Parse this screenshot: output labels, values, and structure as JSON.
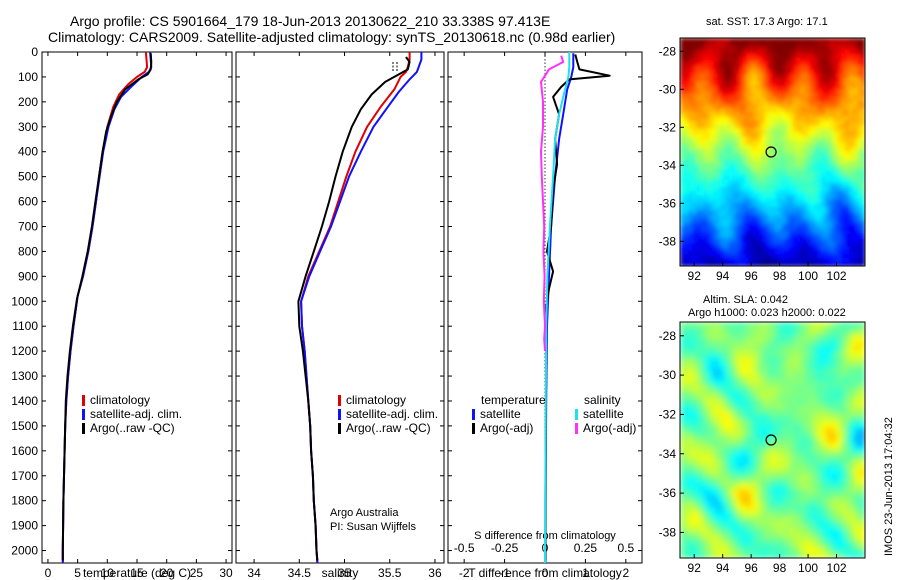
{
  "header": {
    "line1": "Argo profile: CS 5901664_179 18-Jun-2013 20130622_210 33.338S 97.413E",
    "line2": "Climatology: CARS2009. Satellite-adjusted climatology: synTS_20130618.nc (0.98d earlier)"
  },
  "footer": {
    "credit": "IMOS 23-Jun-2013 17:04:32",
    "agency": "Argo Australia",
    "pi": "PI: Susan Wijffels"
  },
  "colors": {
    "climatology": "#e00000",
    "satellite": "#1010ff",
    "argo": "#000000",
    "sal_satellite": "#20e0f0",
    "sal_argo": "#ff30ff"
  },
  "chart_data": [
    {
      "type": "line",
      "name": "temperature-panel",
      "xlabel": "temperature (deg C)",
      "xlim": [
        -1,
        31
      ],
      "ylim": [
        0,
        2050
      ],
      "y_reversed": true,
      "xticks": [
        0,
        5,
        10,
        15,
        20,
        25,
        30
      ],
      "yticks": [
        0,
        100,
        200,
        300,
        400,
        500,
        600,
        700,
        800,
        900,
        1000,
        1100,
        1200,
        1300,
        1400,
        1500,
        1600,
        1700,
        1800,
        1900,
        2000
      ],
      "legend": [
        "climatology",
        "satellite-adj. clim.",
        "Argo(..raw -QC)"
      ],
      "legend_position": "bottom-center",
      "series": [
        {
          "name": "climatology",
          "color": "#e00000",
          "points": [
            [
              16.5,
              0
            ],
            [
              16.6,
              30
            ],
            [
              16.7,
              60
            ],
            [
              16.3,
              80
            ],
            [
              15,
              100
            ],
            [
              13.5,
              130
            ],
            [
              12,
              170
            ],
            [
              11,
              220
            ],
            [
              10,
              300
            ],
            [
              9.2,
              400
            ],
            [
              8.6,
              500
            ],
            [
              8.1,
              600
            ],
            [
              7.5,
              700
            ],
            [
              6.8,
              800
            ],
            [
              5.9,
              900
            ],
            [
              5,
              980
            ],
            [
              4.3,
              1100
            ],
            [
              3.8,
              1200
            ],
            [
              3.4,
              1300
            ],
            [
              3.1,
              1400
            ],
            [
              2.9,
              1500
            ],
            [
              2.8,
              1600
            ],
            [
              2.7,
              1700
            ],
            [
              2.6,
              1800
            ],
            [
              2.55,
              1900
            ],
            [
              2.5,
              2000
            ],
            [
              2.5,
              2050
            ]
          ]
        },
        {
          "name": "satellite-adj. clim.",
          "color": "#1010ff",
          "points": [
            [
              17.2,
              0
            ],
            [
              17.3,
              30
            ],
            [
              17.4,
              60
            ],
            [
              17,
              80
            ],
            [
              15.8,
              100
            ],
            [
              14,
              140
            ],
            [
              12.3,
              180
            ],
            [
              11.2,
              230
            ],
            [
              10.2,
              300
            ],
            [
              9.3,
              400
            ],
            [
              8.7,
              500
            ],
            [
              8.1,
              600
            ],
            [
              7.5,
              700
            ],
            [
              6.8,
              800
            ],
            [
              5.9,
              900
            ],
            [
              5,
              980
            ],
            [
              4.3,
              1100
            ],
            [
              3.8,
              1200
            ],
            [
              3.4,
              1300
            ],
            [
              3.1,
              1400
            ],
            [
              2.9,
              1500
            ],
            [
              2.8,
              1600
            ],
            [
              2.7,
              1700
            ],
            [
              2.6,
              1800
            ],
            [
              2.55,
              1900
            ],
            [
              2.5,
              2000
            ],
            [
              2.5,
              2050
            ]
          ]
        },
        {
          "name": "Argo(..raw -QC)",
          "color": "#000000",
          "points": [
            [
              17.3,
              5
            ],
            [
              17.4,
              40
            ],
            [
              17.3,
              70
            ],
            [
              16.8,
              90
            ],
            [
              15.2,
              110
            ],
            [
              13,
              150
            ],
            [
              11.6,
              200
            ],
            [
              10.6,
              260
            ],
            [
              9.8,
              320
            ],
            [
              9.2,
              400
            ],
            [
              8.6,
              500
            ],
            [
              8,
              600
            ],
            [
              7.4,
              700
            ],
            [
              6.7,
              800
            ],
            [
              5.8,
              900
            ],
            [
              4.9,
              990
            ],
            [
              4.2,
              1100
            ],
            [
              3.7,
              1200
            ],
            [
              3.3,
              1300
            ],
            [
              3.0,
              1400
            ],
            [
              2.9,
              1500
            ],
            [
              2.8,
              1600
            ],
            [
              2.7,
              1700
            ],
            [
              2.6,
              1800
            ],
            [
              2.55,
              1900
            ],
            [
              2.5,
              2000
            ],
            [
              2.5,
              2040
            ]
          ]
        }
      ]
    },
    {
      "type": "line",
      "name": "salinity-panel",
      "xlabel": "salinity",
      "xlim": [
        33.8,
        36.1
      ],
      "ylim": [
        0,
        2050
      ],
      "y_reversed": true,
      "xticks": [
        34,
        34.5,
        35,
        35.5,
        36
      ],
      "legend": [
        "climatology",
        "satellite-adj. clim.",
        "Argo(..raw -QC)"
      ],
      "legend_position": "bottom-center",
      "series": [
        {
          "name": "climatology",
          "color": "#e00000",
          "points": [
            [
              35.72,
              0
            ],
            [
              35.72,
              30
            ],
            [
              35.7,
              60
            ],
            [
              35.68,
              80
            ],
            [
              35.62,
              100
            ],
            [
              35.55,
              150
            ],
            [
              35.4,
              220
            ],
            [
              35.25,
              300
            ],
            [
              35.12,
              400
            ],
            [
              35.02,
              500
            ],
            [
              34.93,
              600
            ],
            [
              34.84,
              700
            ],
            [
              34.72,
              800
            ],
            [
              34.6,
              900
            ],
            [
              34.52,
              1000
            ],
            [
              34.53,
              1100
            ],
            [
              34.56,
              1200
            ],
            [
              34.58,
              1300
            ],
            [
              34.6,
              1400
            ],
            [
              34.62,
              1500
            ],
            [
              34.63,
              1600
            ],
            [
              34.65,
              1700
            ],
            [
              34.66,
              1800
            ],
            [
              34.68,
              1900
            ],
            [
              34.69,
              2000
            ],
            [
              34.7,
              2050
            ]
          ]
        },
        {
          "name": "satellite-adj. clim.",
          "color": "#1010ff",
          "points": [
            [
              35.85,
              0
            ],
            [
              35.85,
              30
            ],
            [
              35.82,
              60
            ],
            [
              35.8,
              80
            ],
            [
              35.72,
              110
            ],
            [
              35.6,
              160
            ],
            [
              35.48,
              220
            ],
            [
              35.32,
              300
            ],
            [
              35.18,
              400
            ],
            [
              35.05,
              500
            ],
            [
              34.95,
              600
            ],
            [
              34.85,
              700
            ],
            [
              34.73,
              800
            ],
            [
              34.61,
              900
            ],
            [
              34.52,
              1000
            ],
            [
              34.53,
              1100
            ],
            [
              34.56,
              1200
            ],
            [
              34.58,
              1300
            ],
            [
              34.6,
              1400
            ],
            [
              34.62,
              1500
            ],
            [
              34.63,
              1600
            ],
            [
              34.65,
              1700
            ],
            [
              34.66,
              1800
            ],
            [
              34.68,
              1900
            ],
            [
              34.69,
              2000
            ],
            [
              34.7,
              2050
            ]
          ]
        },
        {
          "name": "Argo(..raw -QC)",
          "color": "#000000",
          "points": [
            [
              35.68,
              20
            ],
            [
              35.72,
              40
            ],
            [
              35.7,
              70
            ],
            [
              35.6,
              90
            ],
            [
              35.45,
              120
            ],
            [
              35.3,
              170
            ],
            [
              35.18,
              230
            ],
            [
              35.08,
              300
            ],
            [
              34.98,
              400
            ],
            [
              34.9,
              500
            ],
            [
              34.83,
              600
            ],
            [
              34.75,
              700
            ],
            [
              34.66,
              800
            ],
            [
              34.57,
              900
            ],
            [
              34.49,
              1000
            ],
            [
              34.5,
              1100
            ],
            [
              34.54,
              1200
            ],
            [
              34.57,
              1300
            ],
            [
              34.6,
              1400
            ],
            [
              34.62,
              1500
            ],
            [
              34.63,
              1600
            ],
            [
              34.65,
              1700
            ],
            [
              34.66,
              1800
            ],
            [
              34.68,
              1900
            ],
            [
              34.69,
              2000
            ],
            [
              34.7,
              2040
            ]
          ]
        }
      ]
    },
    {
      "type": "line",
      "name": "difference-panel",
      "xlabel": "T difference from climatology",
      "xlabel2": "S difference from climatology",
      "xlim": [
        -2.4,
        2.4
      ],
      "ylim": [
        0,
        2050
      ],
      "y_reversed": true,
      "xticks": [
        -2,
        -1,
        0,
        1,
        2
      ],
      "xticks_top": [
        -0.5,
        -0.25,
        0,
        0.25,
        0.5
      ],
      "xticks_top_labels": [
        "-0.5",
        "-0.25",
        "0",
        "0.25",
        "0.5"
      ],
      "legend_headers": [
        "temperature",
        "salinity"
      ],
      "legend": [
        "satellite",
        "Argo(-adj)",
        "satellite",
        "Argo(-adj)"
      ],
      "legend_position": "bottom-center",
      "series": [
        {
          "name": "T satellite",
          "color": "#1010ff",
          "points": [
            [
              0.7,
              5
            ],
            [
              0.7,
              60
            ],
            [
              0.65,
              100
            ],
            [
              0.55,
              150
            ],
            [
              0.45,
              250
            ],
            [
              0.35,
              350
            ],
            [
              0.25,
              500
            ],
            [
              0.15,
              700
            ],
            [
              0.1,
              900
            ],
            [
              0.05,
              1100
            ],
            [
              0.03,
              1400
            ],
            [
              0.02,
              1700
            ],
            [
              0.01,
              2000
            ],
            [
              0.01,
              2050
            ]
          ]
        },
        {
          "name": "T Argo(-adj)",
          "color": "#000000",
          "points": [
            [
              0.75,
              10
            ],
            [
              0.8,
              40
            ],
            [
              0.85,
              70
            ],
            [
              1.6,
              95
            ],
            [
              0.6,
              110
            ],
            [
              0.4,
              140
            ],
            [
              0.2,
              180
            ],
            [
              0.35,
              250
            ],
            [
              0.25,
              350
            ],
            [
              0.3,
              450
            ],
            [
              0.2,
              550
            ],
            [
              0.15,
              700
            ],
            [
              0.05,
              800
            ],
            [
              0.2,
              880
            ],
            [
              0.1,
              950
            ],
            [
              0.0,
              1050
            ],
            [
              0.03,
              1200
            ],
            [
              0.02,
              1500
            ],
            [
              0.01,
              1800
            ],
            [
              0.01,
              2040
            ]
          ]
        },
        {
          "name": "S satellite",
          "color": "#20e0f0",
          "points": [
            [
              0.6,
              0
            ],
            [
              0.6,
              60
            ],
            [
              0.58,
              100
            ],
            [
              0.45,
              180
            ],
            [
              0.35,
              250
            ],
            [
              0.25,
              350
            ],
            [
              0.2,
              500
            ],
            [
              0.12,
              700
            ],
            [
              0.06,
              900
            ],
            [
              0.03,
              1100
            ],
            [
              0.02,
              1400
            ],
            [
              0.01,
              1700
            ],
            [
              0.0,
              2000
            ],
            [
              0.0,
              2050
            ]
          ]
        },
        {
          "name": "S Argo(-adj)",
          "color": "#ff30ff",
          "points": [
            [
              0.4,
              15
            ],
            [
              0.45,
              40
            ],
            [
              0.1,
              70
            ],
            [
              -0.1,
              120
            ],
            [
              -0.05,
              200
            ],
            [
              -0.05,
              300
            ],
            [
              -0.1,
              400
            ],
            [
              -0.08,
              500
            ],
            [
              -0.05,
              600
            ],
            [
              -0.02,
              700
            ],
            [
              -0.04,
              800
            ],
            [
              -0.01,
              900
            ],
            [
              -0.03,
              1000
            ],
            [
              0.0,
              1100
            ],
            [
              -0.02,
              1150
            ],
            [
              0.0,
              1200
            ]
          ]
        }
      ]
    },
    {
      "type": "heatmap",
      "name": "sst-map",
      "title": "sat. SST: 17.3  Argo: 17.1",
      "xticks": [
        92,
        94,
        96,
        98,
        100,
        102
      ],
      "yticks": [
        -28,
        -30,
        -32,
        -34,
        -36,
        -38
      ],
      "xlim": [
        91,
        104
      ],
      "ylim": [
        -39.3,
        -27.3
      ],
      "marker": {
        "lon": 97.4,
        "lat": -33.3
      }
    },
    {
      "type": "heatmap",
      "name": "sla-map",
      "title": "Altim. SLA: 0.042",
      "subtitle": "Argo h1000: 0.023 h2000: 0.022",
      "xticks": [
        92,
        94,
        96,
        98,
        100,
        102
      ],
      "yticks": [
        -28,
        -30,
        -32,
        -34,
        -36,
        -38
      ],
      "xlim": [
        91,
        104
      ],
      "ylim": [
        -39.3,
        -27.3
      ],
      "marker": {
        "lon": 97.4,
        "lat": -33.3
      }
    }
  ]
}
